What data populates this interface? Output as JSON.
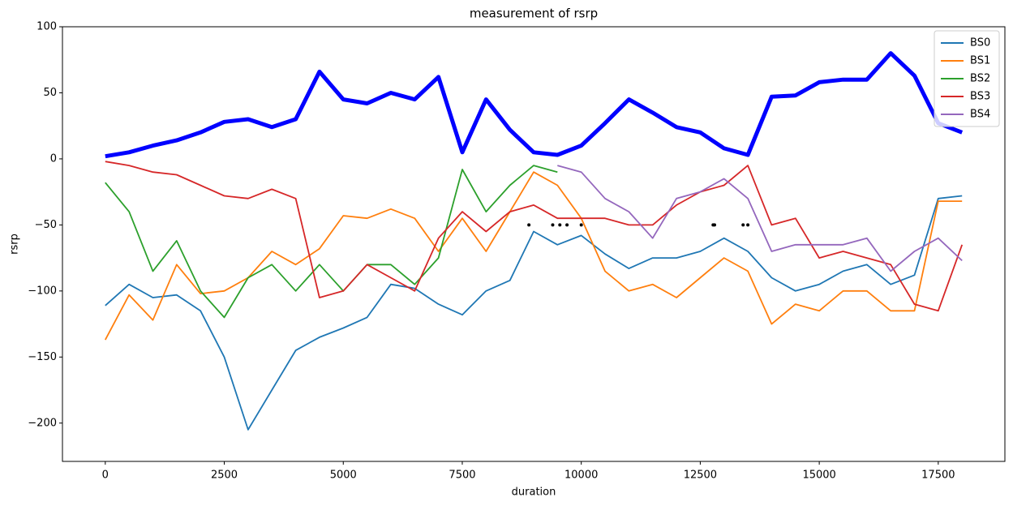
{
  "chart_data": {
    "type": "line",
    "title": "measurement of rsrp",
    "xlabel": "duration",
    "ylabel": "rsrp",
    "x": [
      0,
      500,
      1000,
      1500,
      2000,
      2500,
      3000,
      3500,
      4000,
      4500,
      5000,
      5500,
      6000,
      6500,
      7000,
      7500,
      8000,
      8500,
      9000,
      9500,
      10000,
      10500,
      11000,
      11500,
      12000,
      12500,
      13000,
      13500,
      14000,
      14500,
      15000,
      15500,
      16000,
      16500,
      17000,
      17500,
      18000
    ],
    "series": [
      {
        "name": "BS0",
        "color": "#1f77b4",
        "values": [
          -111,
          -95,
          -105,
          -103,
          -115,
          -150,
          -205,
          -175,
          -145,
          -135,
          -128,
          -120,
          -95,
          -98,
          -110,
          -118,
          -100,
          -92,
          -55,
          -65,
          -58,
          -72,
          -83,
          -75,
          -75,
          -70,
          -60,
          -70,
          -90,
          -100,
          -95,
          -85,
          -80,
          -95,
          -88,
          -30,
          -28
        ]
      },
      {
        "name": "BS1",
        "color": "#ff7f0e",
        "values": [
          -137,
          -103,
          -122,
          -80,
          -102,
          -100,
          -90,
          -70,
          -80,
          -68,
          -43,
          -45,
          -38,
          -45,
          -70,
          -45,
          -70,
          -40,
          -10,
          -20,
          -45,
          -85,
          -100,
          -95,
          -105,
          -90,
          -75,
          -85,
          -125,
          -110,
          -115,
          -100,
          -100,
          -115,
          -115,
          -32,
          -32
        ]
      },
      {
        "name": "BS2",
        "color": "#2ca02c",
        "values": [
          -18,
          -40,
          -85,
          -62,
          -100,
          -120,
          -90,
          -80,
          -100,
          -80,
          -100,
          -80,
          -80,
          -95,
          -75,
          -8,
          -40,
          -20,
          -5,
          -10,
          null,
          null,
          null,
          null,
          null,
          null,
          null,
          null,
          null,
          null,
          null,
          null,
          null,
          null,
          null,
          null,
          null
        ]
      },
      {
        "name": "BS3",
        "color": "#d62728",
        "values": [
          -2,
          -5,
          -10,
          -12,
          -20,
          -28,
          -30,
          -23,
          -30,
          -105,
          -100,
          -80,
          -90,
          -100,
          -60,
          -40,
          -55,
          -40,
          -35,
          -45,
          -45,
          -45,
          -50,
          -50,
          -35,
          -25,
          -20,
          -5,
          -50,
          -45,
          -75,
          -70,
          -75,
          -80,
          -110,
          -115,
          -65
        ]
      },
      {
        "name": "BS4",
        "color": "#9467bd",
        "values": [
          null,
          null,
          null,
          null,
          null,
          null,
          null,
          null,
          null,
          null,
          null,
          null,
          null,
          null,
          null,
          null,
          null,
          null,
          null,
          -5,
          -10,
          -30,
          -40,
          -60,
          -30,
          -25,
          -15,
          -30,
          -70,
          -65,
          -65,
          -65,
          -60,
          -85,
          -70,
          -60,
          -77
        ]
      },
      {
        "color": "#0000ff",
        "linewidth": 5,
        "values": [
          2,
          5,
          10,
          14,
          20,
          28,
          30,
          24,
          30,
          66,
          45,
          42,
          50,
          45,
          62,
          5,
          45,
          22,
          5,
          3,
          10,
          27,
          45,
          35,
          24,
          20,
          8,
          3,
          47,
          48,
          58,
          60,
          60,
          80,
          63,
          27,
          20
        ]
      },
      {
        "color": "#000000",
        "marker": "dot",
        "x": [
          8900,
          9400,
          9550,
          9700,
          10000,
          12770,
          12800,
          13400,
          13500
        ],
        "values": [
          -50,
          -50,
          -50,
          -50,
          -50,
          -50,
          -50,
          -50,
          -50
        ]
      }
    ],
    "xlim": [
      -900,
      18900
    ],
    "xticks": [
      0,
      2500,
      5000,
      7500,
      10000,
      12500,
      15000,
      17500
    ],
    "ylim": [
      -229,
      100
    ],
    "yticks": [
      {
        "value": -200,
        "label": "−200"
      },
      {
        "value": -150,
        "label": "−150"
      },
      {
        "value": -100,
        "label": "−100"
      },
      {
        "value": -50,
        "label": "−50"
      },
      0,
      50,
      100
    ],
    "legend": "upper right"
  }
}
